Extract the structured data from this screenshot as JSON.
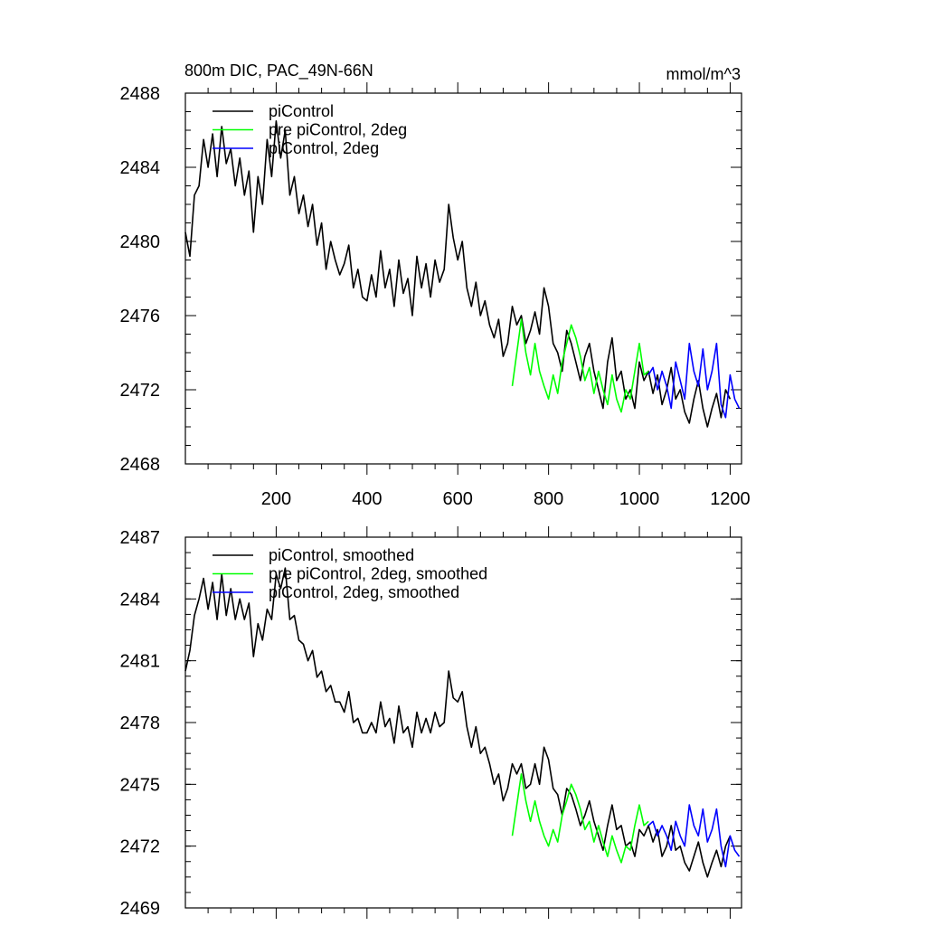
{
  "figure": {
    "title": "800m DIC, PAC_49N-66N",
    "units": "mmol/m^3"
  },
  "chart_data": [
    {
      "type": "line",
      "title": "800m DIC, PAC_49N-66N",
      "units": "mmol/m^3",
      "xlabel": "",
      "ylabel": "",
      "xlim": [
        0,
        1225
      ],
      "ylim": [
        2468,
        2488
      ],
      "xticks": [
        200,
        400,
        600,
        800,
        1000,
        1200
      ],
      "xtick_labels": [
        "200",
        "400",
        "600",
        "800",
        "1000",
        "1200"
      ],
      "yticks": [
        2468,
        2472,
        2476,
        2480,
        2484,
        2488
      ],
      "ytick_labels": [
        "2468",
        "2472",
        "2476",
        "2480",
        "2484",
        "2488"
      ],
      "legend_position": "top-left",
      "series": [
        {
          "name": "piControl",
          "color": "#000000",
          "x": [
            0,
            10,
            20,
            30,
            40,
            50,
            60,
            70,
            80,
            90,
            100,
            110,
            120,
            130,
            140,
            150,
            160,
            170,
            180,
            190,
            200,
            210,
            220,
            230,
            240,
            250,
            260,
            270,
            280,
            290,
            300,
            310,
            320,
            330,
            340,
            350,
            360,
            370,
            380,
            390,
            400,
            410,
            420,
            430,
            440,
            450,
            460,
            470,
            480,
            490,
            500,
            510,
            520,
            530,
            540,
            550,
            560,
            570,
            580,
            590,
            600,
            610,
            620,
            630,
            640,
            650,
            660,
            670,
            680,
            690,
            700,
            710,
            720,
            730,
            740,
            750,
            760,
            770,
            780,
            790,
            800,
            810,
            820,
            830,
            840,
            850,
            860,
            870,
            880,
            890,
            900,
            910,
            920,
            930,
            940,
            950,
            960,
            970,
            980,
            990,
            1000,
            1010,
            1020,
            1030,
            1040,
            1050,
            1060,
            1070,
            1080,
            1090,
            1100,
            1110,
            1120,
            1130,
            1140,
            1150,
            1160,
            1170,
            1180,
            1190,
            1200
          ],
          "y": [
            2480.5,
            2479.2,
            2482.5,
            2483.0,
            2485.5,
            2484.0,
            2485.8,
            2483.5,
            2486.2,
            2484.2,
            2485.0,
            2483.0,
            2484.5,
            2482.5,
            2483.8,
            2480.5,
            2483.5,
            2482.0,
            2485.5,
            2483.5,
            2486.5,
            2484.5,
            2486.0,
            2482.5,
            2483.5,
            2481.5,
            2482.5,
            2480.8,
            2482.0,
            2479.8,
            2481.0,
            2478.5,
            2480.0,
            2479.0,
            2478.2,
            2478.8,
            2479.8,
            2477.5,
            2478.5,
            2477.0,
            2476.8,
            2478.2,
            2477.0,
            2479.5,
            2477.5,
            2478.5,
            2476.5,
            2479.0,
            2477.2,
            2478.0,
            2476.0,
            2479.2,
            2477.5,
            2478.8,
            2477.0,
            2479.0,
            2477.8,
            2478.5,
            2482.0,
            2480.2,
            2479.0,
            2480.0,
            2477.5,
            2476.5,
            2477.8,
            2476.0,
            2476.8,
            2475.5,
            2474.8,
            2475.8,
            2473.8,
            2474.5,
            2476.5,
            2475.5,
            2476.0,
            2474.5,
            2475.2,
            2476.2,
            2475.0,
            2477.5,
            2476.5,
            2474.5,
            2474.0,
            2473.0,
            2475.2,
            2474.5,
            2473.5,
            2472.5,
            2473.8,
            2474.5,
            2473.0,
            2472.0,
            2471.0,
            2473.5,
            2474.8,
            2472.5,
            2473.0,
            2471.5,
            2472.0,
            2471.0,
            2473.5,
            2472.5,
            2473.0,
            2471.8,
            2472.8,
            2471.2,
            2472.0,
            2473.2,
            2471.5,
            2472.0,
            2470.8,
            2470.2,
            2471.5,
            2472.5,
            2471.0,
            2470.0,
            2471.0,
            2471.8,
            2470.5,
            2472.0,
            2471.5
          ]
        },
        {
          "name": "pre piControl, 2deg",
          "color": "#00ff00",
          "x": [
            720,
            730,
            740,
            750,
            760,
            770,
            780,
            790,
            800,
            810,
            820,
            830,
            840,
            850,
            860,
            870,
            880,
            890,
            900,
            910,
            920,
            930,
            940,
            950,
            960,
            970,
            980,
            990,
            1000,
            1010,
            1020
          ],
          "y": [
            2472.2,
            2474.0,
            2475.8,
            2474.0,
            2472.8,
            2474.5,
            2473.0,
            2472.2,
            2471.5,
            2472.8,
            2471.8,
            2473.5,
            2474.5,
            2475.5,
            2474.8,
            2473.8,
            2472.5,
            2473.2,
            2471.8,
            2473.0,
            2472.0,
            2471.2,
            2472.8,
            2471.5,
            2470.8,
            2472.0,
            2471.5,
            2473.0,
            2474.5,
            2472.8,
            2473.0
          ]
        },
        {
          "name": "piControl, 2deg",
          "color": "#0000ff",
          "x": [
            1020,
            1030,
            1040,
            1050,
            1060,
            1070,
            1080,
            1090,
            1100,
            1110,
            1120,
            1130,
            1140,
            1150,
            1160,
            1170,
            1180,
            1190,
            1200,
            1210,
            1220
          ],
          "y": [
            2472.8,
            2473.2,
            2472.0,
            2473.0,
            2472.2,
            2471.0,
            2473.5,
            2472.5,
            2471.5,
            2474.5,
            2473.0,
            2472.2,
            2474.2,
            2472.0,
            2473.0,
            2474.5,
            2471.2,
            2470.5,
            2472.8,
            2471.5,
            2471.0
          ]
        }
      ]
    },
    {
      "type": "line",
      "title": "",
      "xlabel": "",
      "ylabel": "",
      "xlim": [
        0,
        1225
      ],
      "ylim": [
        2469,
        2487
      ],
      "xticks": [
        200,
        400,
        600,
        800,
        1000,
        1200
      ],
      "yticks": [
        2469,
        2472,
        2475,
        2478,
        2481,
        2484,
        2487
      ],
      "ytick_labels": [
        "2469",
        "2472",
        "2475",
        "2478",
        "2481",
        "2484",
        "2487"
      ],
      "legend_position": "top-left",
      "series": [
        {
          "name": "piControl, smoothed",
          "color": "#000000",
          "x": [
            0,
            10,
            20,
            30,
            40,
            50,
            60,
            70,
            80,
            90,
            100,
            110,
            120,
            130,
            140,
            150,
            160,
            170,
            180,
            190,
            200,
            210,
            220,
            230,
            240,
            250,
            260,
            270,
            280,
            290,
            300,
            310,
            320,
            330,
            340,
            350,
            360,
            370,
            380,
            390,
            400,
            410,
            420,
            430,
            440,
            450,
            460,
            470,
            480,
            490,
            500,
            510,
            520,
            530,
            540,
            550,
            560,
            570,
            580,
            590,
            600,
            610,
            620,
            630,
            640,
            650,
            660,
            670,
            680,
            690,
            700,
            710,
            720,
            730,
            740,
            750,
            760,
            770,
            780,
            790,
            800,
            810,
            820,
            830,
            840,
            850,
            860,
            870,
            880,
            890,
            900,
            910,
            920,
            930,
            940,
            950,
            960,
            970,
            980,
            990,
            1000,
            1010,
            1020,
            1030,
            1040,
            1050,
            1060,
            1070,
            1080,
            1090,
            1100,
            1110,
            1120,
            1130,
            1140,
            1150,
            1160,
            1170,
            1180,
            1190,
            1200
          ],
          "y": [
            2480.5,
            2481.5,
            2483.2,
            2484.0,
            2485.0,
            2483.5,
            2484.8,
            2483.0,
            2485.2,
            2483.2,
            2484.5,
            2483.0,
            2484.0,
            2483.0,
            2483.8,
            2481.2,
            2482.8,
            2482.0,
            2483.5,
            2483.0,
            2485.2,
            2484.5,
            2485.5,
            2483.0,
            2483.2,
            2482.0,
            2481.8,
            2481.0,
            2481.5,
            2480.2,
            2480.5,
            2479.5,
            2479.8,
            2479.0,
            2479.0,
            2478.5,
            2479.5,
            2478.0,
            2478.2,
            2477.5,
            2477.5,
            2478.0,
            2477.5,
            2479.0,
            2477.8,
            2478.2,
            2477.0,
            2478.8,
            2477.5,
            2477.8,
            2476.8,
            2478.5,
            2477.5,
            2478.2,
            2477.5,
            2478.5,
            2477.8,
            2478.0,
            2480.5,
            2479.2,
            2479.0,
            2479.5,
            2477.8,
            2476.8,
            2477.8,
            2476.5,
            2476.8,
            2476.0,
            2475.0,
            2475.5,
            2474.2,
            2474.8,
            2476.0,
            2475.5,
            2476.0,
            2474.8,
            2475.0,
            2476.0,
            2475.0,
            2476.8,
            2476.2,
            2474.8,
            2474.5,
            2473.5,
            2474.8,
            2474.5,
            2473.8,
            2473.0,
            2473.5,
            2474.2,
            2473.2,
            2472.5,
            2471.8,
            2473.0,
            2474.0,
            2472.8,
            2473.0,
            2472.0,
            2472.2,
            2471.5,
            2472.8,
            2472.5,
            2473.0,
            2472.2,
            2472.8,
            2471.5,
            2472.0,
            2473.0,
            2471.8,
            2472.0,
            2471.2,
            2470.8,
            2471.5,
            2472.2,
            2471.2,
            2470.5,
            2471.2,
            2471.8,
            2471.0,
            2472.0,
            2472.5
          ]
        },
        {
          "name": "pre piControl, 2deg, smoothed",
          "color": "#00ff00",
          "x": [
            720,
            730,
            740,
            750,
            760,
            770,
            780,
            790,
            800,
            810,
            820,
            830,
            840,
            850,
            860,
            870,
            880,
            890,
            900,
            910,
            920,
            930,
            940,
            950,
            960,
            970,
            980,
            990,
            1000,
            1010,
            1020
          ],
          "y": [
            2472.5,
            2474.0,
            2475.5,
            2474.2,
            2473.2,
            2474.2,
            2473.2,
            2472.5,
            2472.0,
            2472.8,
            2472.2,
            2473.5,
            2474.2,
            2475.0,
            2474.5,
            2473.8,
            2472.8,
            2473.2,
            2472.2,
            2473.0,
            2472.2,
            2471.5,
            2472.5,
            2471.8,
            2471.2,
            2472.0,
            2471.8,
            2473.0,
            2474.0,
            2473.0,
            2473.2
          ]
        },
        {
          "name": "piControl, 2deg, smoothed",
          "color": "#0000ff",
          "x": [
            1020,
            1030,
            1040,
            1050,
            1060,
            1070,
            1080,
            1090,
            1100,
            1110,
            1120,
            1130,
            1140,
            1150,
            1160,
            1170,
            1180,
            1190,
            1200,
            1210,
            1220
          ],
          "y": [
            2473.0,
            2473.2,
            2472.5,
            2473.0,
            2472.5,
            2471.8,
            2473.2,
            2472.5,
            2472.0,
            2474.0,
            2473.0,
            2472.5,
            2473.8,
            2472.2,
            2472.8,
            2473.8,
            2472.0,
            2471.0,
            2472.5,
            2471.8,
            2471.5
          ]
        }
      ]
    }
  ]
}
